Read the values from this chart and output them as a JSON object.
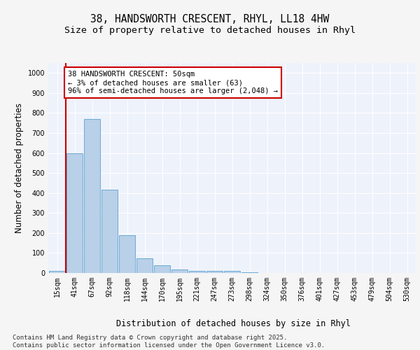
{
  "title_line1": "38, HANDSWORTH CRESCENT, RHYL, LL18 4HW",
  "title_line2": "Size of property relative to detached houses in Rhyl",
  "xlabel": "Distribution of detached houses by size in Rhyl",
  "ylabel": "Number of detached properties",
  "categories": [
    "15sqm",
    "41sqm",
    "67sqm",
    "92sqm",
    "118sqm",
    "144sqm",
    "170sqm",
    "195sqm",
    "221sqm",
    "247sqm",
    "273sqm",
    "298sqm",
    "324sqm",
    "350sqm",
    "376sqm",
    "401sqm",
    "427sqm",
    "453sqm",
    "479sqm",
    "504sqm",
    "530sqm"
  ],
  "values": [
    10,
    600,
    770,
    415,
    190,
    75,
    38,
    18,
    12,
    10,
    12,
    4,
    0,
    0,
    0,
    0,
    0,
    0,
    0,
    0,
    0
  ],
  "bar_color": "#b8d0e8",
  "bar_edge_color": "#6aaad4",
  "highlight_line_color": "#cc0000",
  "annotation_text": "38 HANDSWORTH CRESCENT: 50sqm\n← 3% of detached houses are smaller (63)\n96% of semi-detached houses are larger (2,048) →",
  "annotation_box_color": "#ffffff",
  "annotation_box_edge_color": "#cc0000",
  "ylim": [
    0,
    1050
  ],
  "yticks": [
    0,
    100,
    200,
    300,
    400,
    500,
    600,
    700,
    800,
    900,
    1000
  ],
  "background_color": "#eef2fb",
  "fig_background_color": "#f5f5f5",
  "footer_text": "Contains HM Land Registry data © Crown copyright and database right 2025.\nContains public sector information licensed under the Open Government Licence v3.0.",
  "title_fontsize": 10.5,
  "subtitle_fontsize": 9.5,
  "axis_label_fontsize": 8.5,
  "tick_fontsize": 7,
  "footer_fontsize": 6.5,
  "annot_fontsize": 7.5
}
